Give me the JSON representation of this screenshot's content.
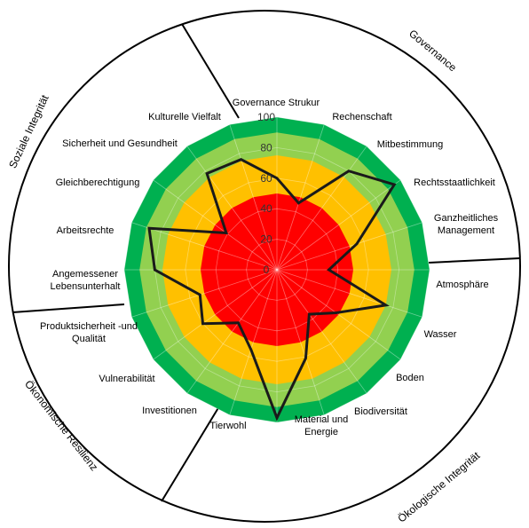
{
  "chart_data": {
    "type": "radar",
    "ylim": [
      0,
      100
    ],
    "ticks": [
      "0",
      "20",
      "40",
      "60",
      "80",
      "100"
    ],
    "grid": true,
    "bands": [
      {
        "from": 0,
        "to": 50,
        "color": "#ff0000"
      },
      {
        "from": 50,
        "to": 75,
        "color": "#ffc000"
      },
      {
        "from": 75,
        "to": 90,
        "color": "#92d050"
      },
      {
        "from": 90,
        "to": 100,
        "color": "#00b050"
      }
    ],
    "series": [
      {
        "color": "#1a1a1a",
        "values": [
          60,
          46,
          80,
          95,
          55,
          34,
          75,
          48,
          36,
          61,
          97,
          55,
          43,
          60,
          53,
          80,
          88,
          41,
          78,
          76
        ]
      }
    ],
    "categories": [
      "Governance Strukur",
      "Rechenschaft",
      "Mitbestimmung",
      "Rechtsstaatlichkeit",
      "Ganzheitliches Management",
      "Atmosphäre",
      "Wasser",
      "Boden",
      "Biodiversität",
      "Material und Energie",
      "Tierwohl",
      "Investitionen",
      "Vulnerabilität",
      "Produktsicherheit -und Qualität",
      "Angemessener Lebensunterhalt",
      "Arbeitsrechte",
      "Gleichberechtigung",
      "Sicherheit und Gesundheit",
      "Kulturelle Vielfalt",
      ""
    ],
    "sectors": [
      "Governance",
      "Ökologische Integrität",
      "Ökonomische Resilienz",
      "Soziale Integrität"
    ]
  }
}
